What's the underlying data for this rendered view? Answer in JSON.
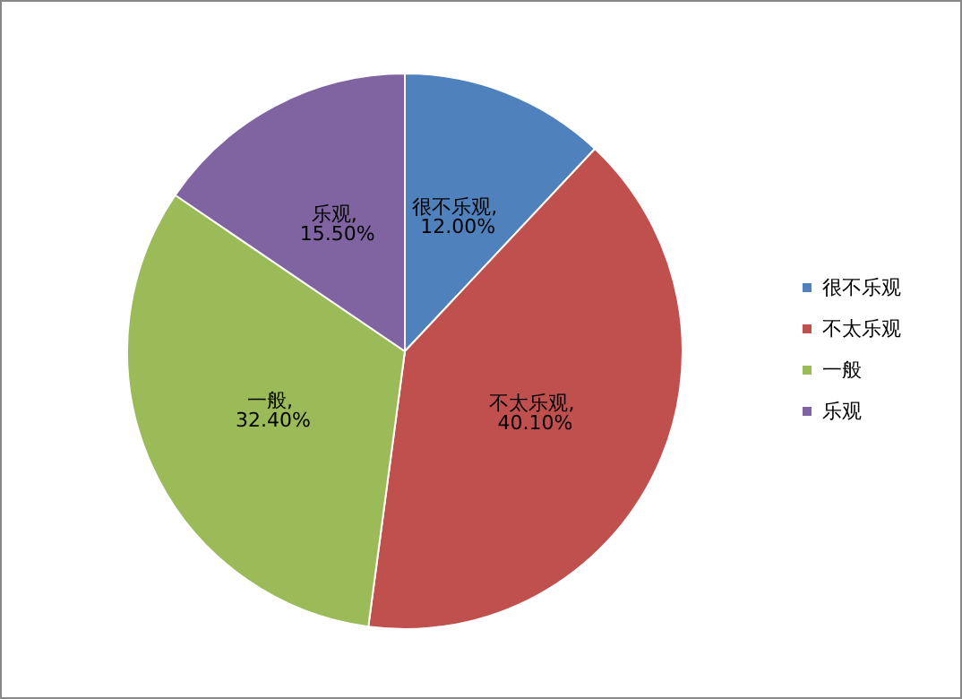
{
  "chart_data": {
    "type": "pie",
    "categories": [
      "很不乐观",
      "不太乐观",
      "一般",
      "乐观"
    ],
    "values": [
      12,
      40.1,
      32.4,
      15.5
    ],
    "colors": [
      "#4f81bd",
      "#c0504d",
      "#9bbb59",
      "#8064a2"
    ],
    "value_labels": [
      "很不乐观, 12.00%",
      "不太乐观, 40.10%",
      "一般, 32.40%",
      "乐观, 15.50%"
    ],
    "legend": "right"
  }
}
